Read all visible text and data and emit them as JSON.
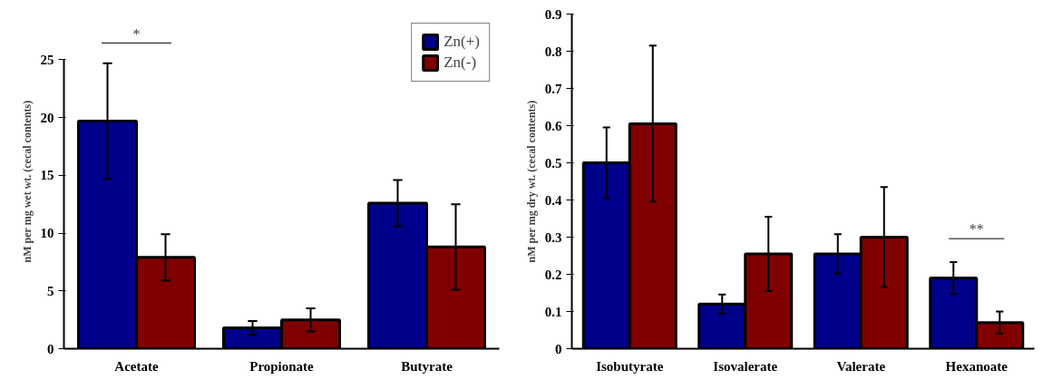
{
  "chart_data": [
    {
      "type": "bar",
      "ylabel": "nM per mg wet wt. (cecal contents)",
      "categories": [
        "Acetate",
        "Propionate",
        "Butyrate"
      ],
      "ylim": [
        0,
        25
      ],
      "yticks": [
        0,
        5,
        10,
        15,
        20,
        25
      ],
      "grid": false,
      "legend": "top right",
      "series": [
        {
          "name": "Zn(+)",
          "color": "#00008b",
          "values": [
            19.7,
            1.8,
            12.6
          ],
          "errors": [
            5,
            0.6,
            2
          ]
        },
        {
          "name": "Zn(-)",
          "color": "#800000",
          "values": [
            7.9,
            2.5,
            8.8
          ],
          "errors": [
            2,
            1.0,
            3.7
          ]
        }
      ],
      "annotations": [
        "*"
      ]
    },
    {
      "type": "bar",
      "ylabel": "nM per mg dry wt. (cecal contents)",
      "categories": [
        "Isobutyrate",
        "Isovalerate",
        "Valerate",
        "Hexanoate"
      ],
      "ylim": [
        0,
        0.9
      ],
      "yticks": [
        0,
        0.1,
        0.2,
        0.3,
        0.4,
        0.5,
        0.6,
        0.7,
        0.8,
        0.9
      ],
      "grid": false,
      "legend": false,
      "series": [
        {
          "color": "#00008b",
          "values": [
            0.5,
            0.12,
            0.255,
            0.19
          ],
          "errors": [
            0.095,
            0.026,
            0.053,
            0.043
          ]
        },
        {
          "color": "#800000",
          "values": [
            0.605,
            0.255,
            0.3,
            0.07
          ],
          "errors": [
            0.21,
            0.1,
            0.135,
            0.03
          ]
        }
      ],
      "annotations": [
        "**"
      ]
    }
  ]
}
